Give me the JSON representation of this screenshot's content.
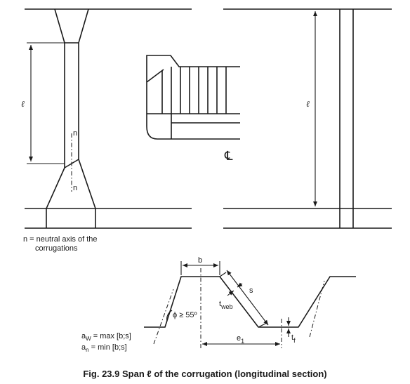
{
  "labels": {
    "span_left": "ℓ",
    "span_right": "ℓ",
    "n_top": "n",
    "n_bottom": "n",
    "centerline": "℄",
    "neutral_axis_line1": "n = neutral axis of the",
    "neutral_axis_line2": "corrugations",
    "b": "b",
    "s": "s",
    "angle": "ϕ ≥ 55º",
    "t_web_t": "t",
    "t_web_sub": "web",
    "t_f_t": "t",
    "t_f_sub": "f",
    "e1": "e",
    "e1_sub": "1",
    "aw_a": "a",
    "aw_sub": "W",
    "aw_rest": " = max [b;s]",
    "an_a": "a",
    "an_sub": "n",
    "an_rest": " = min [b;s]"
  },
  "caption": "Fig. 23.9 Span ℓ of the corrugation (longitudinal section)"
}
